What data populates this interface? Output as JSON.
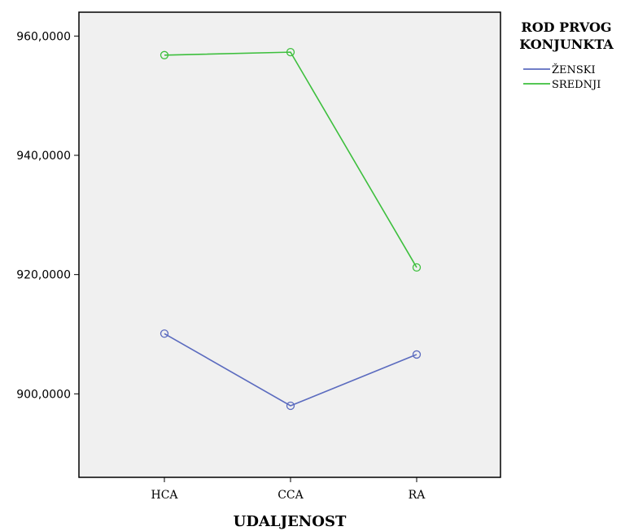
{
  "chart_data": {
    "type": "line",
    "categories": [
      "HCA",
      "CCA",
      "RA"
    ],
    "y_ticks": [
      "900,0000",
      "920,0000",
      "940,0000",
      "960,0000"
    ],
    "y_tick_values": [
      900,
      920,
      940,
      960
    ],
    "ylim": [
      886,
      964
    ],
    "xlabel": "UDALJENOST",
    "ylabel": "",
    "grid": false,
    "legend": {
      "title_lines": [
        "ROD PRVOG",
        "KONJUNKTA"
      ],
      "placement": "right"
    },
    "series": [
      {
        "name": "ŽENSKI",
        "color": "#5b6bbf",
        "values": [
          910.1,
          898.0,
          906.6
        ]
      },
      {
        "name": "SREDNJI",
        "color": "#3dbf3d",
        "values": [
          956.8,
          957.3,
          921.2
        ]
      }
    ],
    "plot_background": "#f0f0f0"
  }
}
